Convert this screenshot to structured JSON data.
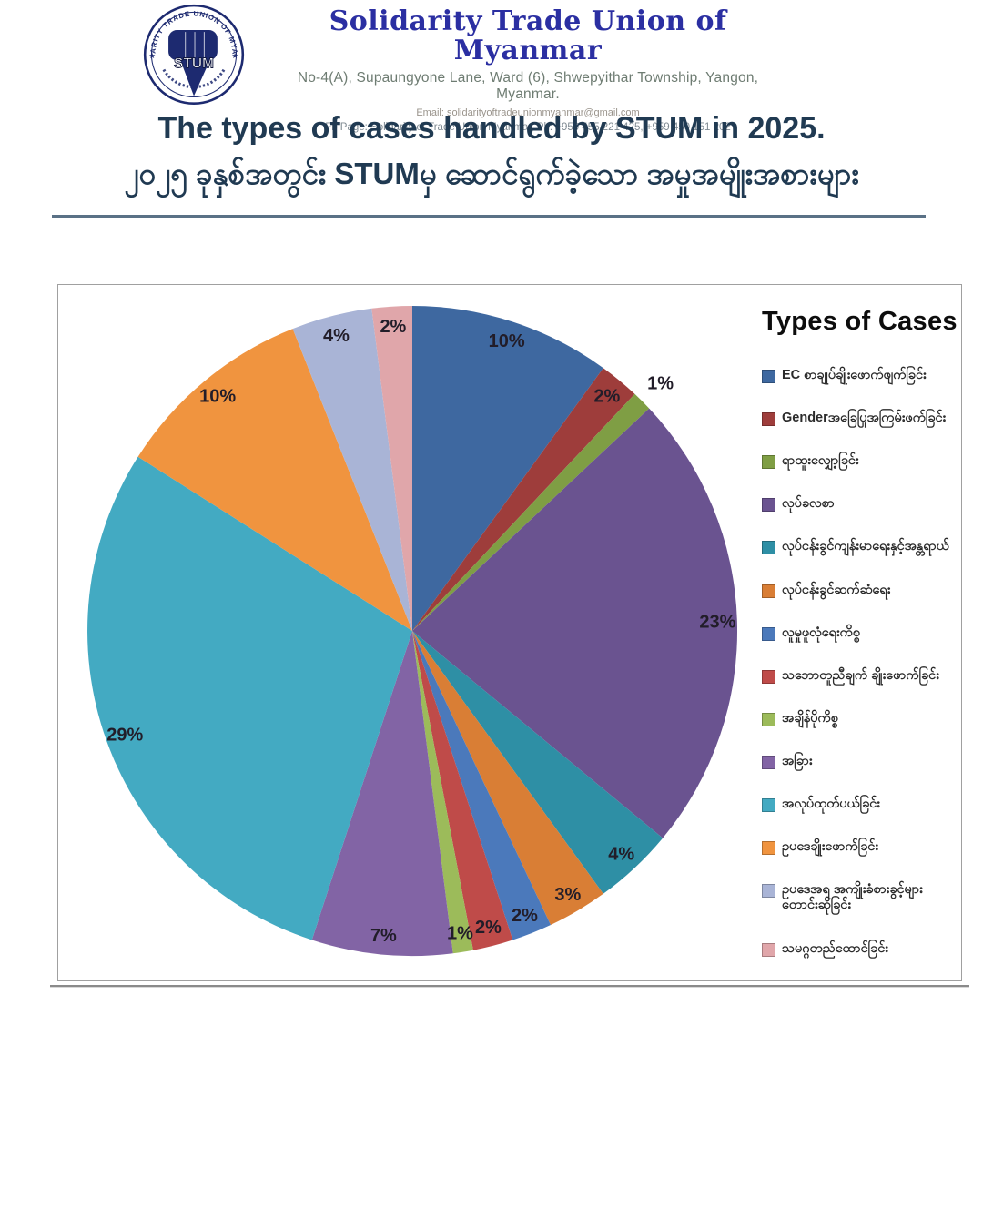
{
  "header": {
    "logo": {
      "acronym": "STUM",
      "ring_text": "SOLIDARITY TRADE UNION OF MYANMAR"
    },
    "org_name": "Solidarity Trade Union of Myanmar",
    "address": "No-4(A), Supaungyone Lane, Ward (6), Shwepyithar Township, Yangon, Myanmar.",
    "email_line": "Email: solidarityoftradeunionmyanmar@gmail.com",
    "fb_line": "Fb Page: Solidarity of Trade Union Myanmar, Ph: +959 455 221 425, +959 450 151 202"
  },
  "title": {
    "english": "The types of cases handled by STUM in 2025.",
    "burmese": "၂၀၂၅ ခုနှစ်အတွင်း STUMမှ ဆောင်ရွက်ခဲ့သော အမှုအမျိုးအစားများ"
  },
  "chart_data": {
    "type": "pie",
    "title": "Types of Cases",
    "legend_position": "right",
    "value_unit": "percent",
    "start_angle_deg": 0,
    "direction": "clockwise",
    "slices": [
      {
        "label": "EC စာချုပ်ချိုးဖောက်ဖျက်ခြင်း",
        "value": 10,
        "color": "#3E68A0"
      },
      {
        "label": "Genderအခြေပြုအကြမ်းဖက်ခြင်း",
        "value": 2,
        "color": "#9E3D3B"
      },
      {
        "label": "ရာထူးလျှော့ခြင်း",
        "value": 1,
        "color": "#7F9E44",
        "label_out": true
      },
      {
        "label": "လုပ်ခလစာ",
        "value": 23,
        "color": "#6A5390"
      },
      {
        "label": "လုပ်ငန်းခွင်ကျန်းမာရေးနှင့်အန္တရာယ်",
        "value": 4,
        "color": "#2E8FA5"
      },
      {
        "label": "လုပ်ငန်းခွင်ဆက်ဆံရေး",
        "value": 3,
        "color": "#D97E35"
      },
      {
        "label": "လူမှုဖူလုံရေးကိစ္စ",
        "value": 2,
        "color": "#4B79BB"
      },
      {
        "label": "သဘောတူညီချက် ချိုးဖောက်ခြင်း",
        "value": 2,
        "color": "#BF4B49"
      },
      {
        "label": "အချိန်ပိုကိစ္စ",
        "value": 1,
        "color": "#9CBB5A"
      },
      {
        "label": "အခြား",
        "value": 7,
        "color": "#8264A5"
      },
      {
        "label": "အလုပ်ထုတ်ပယ်ခြင်း",
        "value": 29,
        "color": "#43AAC2"
      },
      {
        "label": "ဥပဒေချိုးဖောက်ခြင်း",
        "value": 10,
        "color": "#F0943F"
      },
      {
        "label": "ဥပဒေအရ အကျိုးခံစားခွင့်များ တောင်းဆိုခြင်း",
        "value": 4,
        "color": "#A9B4D6"
      },
      {
        "label": "သမဂ္ဂတည်ထောင်ခြင်း",
        "value": 2,
        "color": "#E0A6AA"
      }
    ]
  }
}
